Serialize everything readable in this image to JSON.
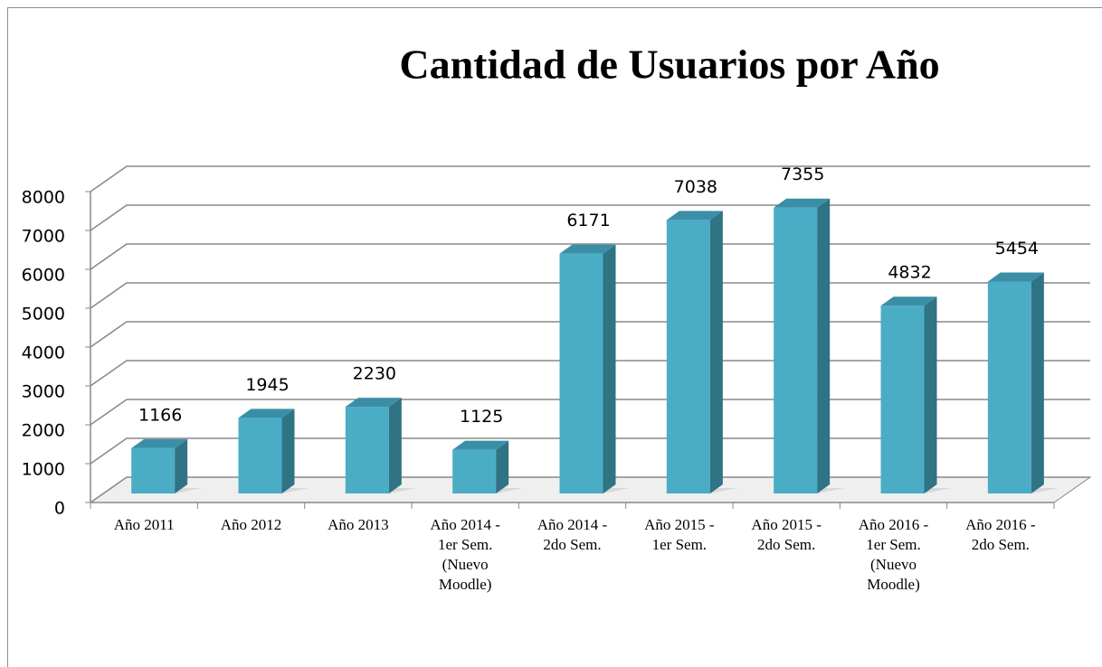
{
  "chart_data": {
    "type": "bar3d",
    "title": "Cantidad de Usuarios por Año",
    "categories": [
      "Año 2011",
      "Año 2012",
      "Año 2013",
      "Año 2014 - 1er Sem. (Nuevo Moodle)",
      "Año 2014 - 2do Sem.",
      "Año 2015 - 1er Sem.",
      "Año 2015 - 2do Sem.",
      "Año 2016 - 1er Sem. (Nuevo Moodle)",
      "Año 2016 - 2do Sem."
    ],
    "values": [
      1166,
      1945,
      2230,
      1125,
      6171,
      7038,
      7355,
      4832,
      5454
    ],
    "color": "#4bacc6",
    "ylim": [
      0,
      8000
    ],
    "yticks": [
      0,
      1000,
      2000,
      3000,
      4000,
      5000,
      6000,
      7000,
      8000
    ],
    "grid": true
  }
}
